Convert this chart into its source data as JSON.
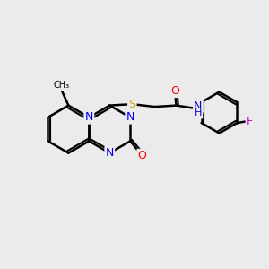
{
  "background_color": "#ebebeb",
  "atom_colors": {
    "C": "#000000",
    "N": "#0000ff",
    "O": "#ff0000",
    "S": "#ccaa00",
    "F": "#cc00cc",
    "H": "#000000",
    "NH": "#0000cc"
  },
  "bond_color": "#000000",
  "bond_width": 1.8,
  "figsize": [
    3.0,
    3.0
  ],
  "dpi": 100
}
